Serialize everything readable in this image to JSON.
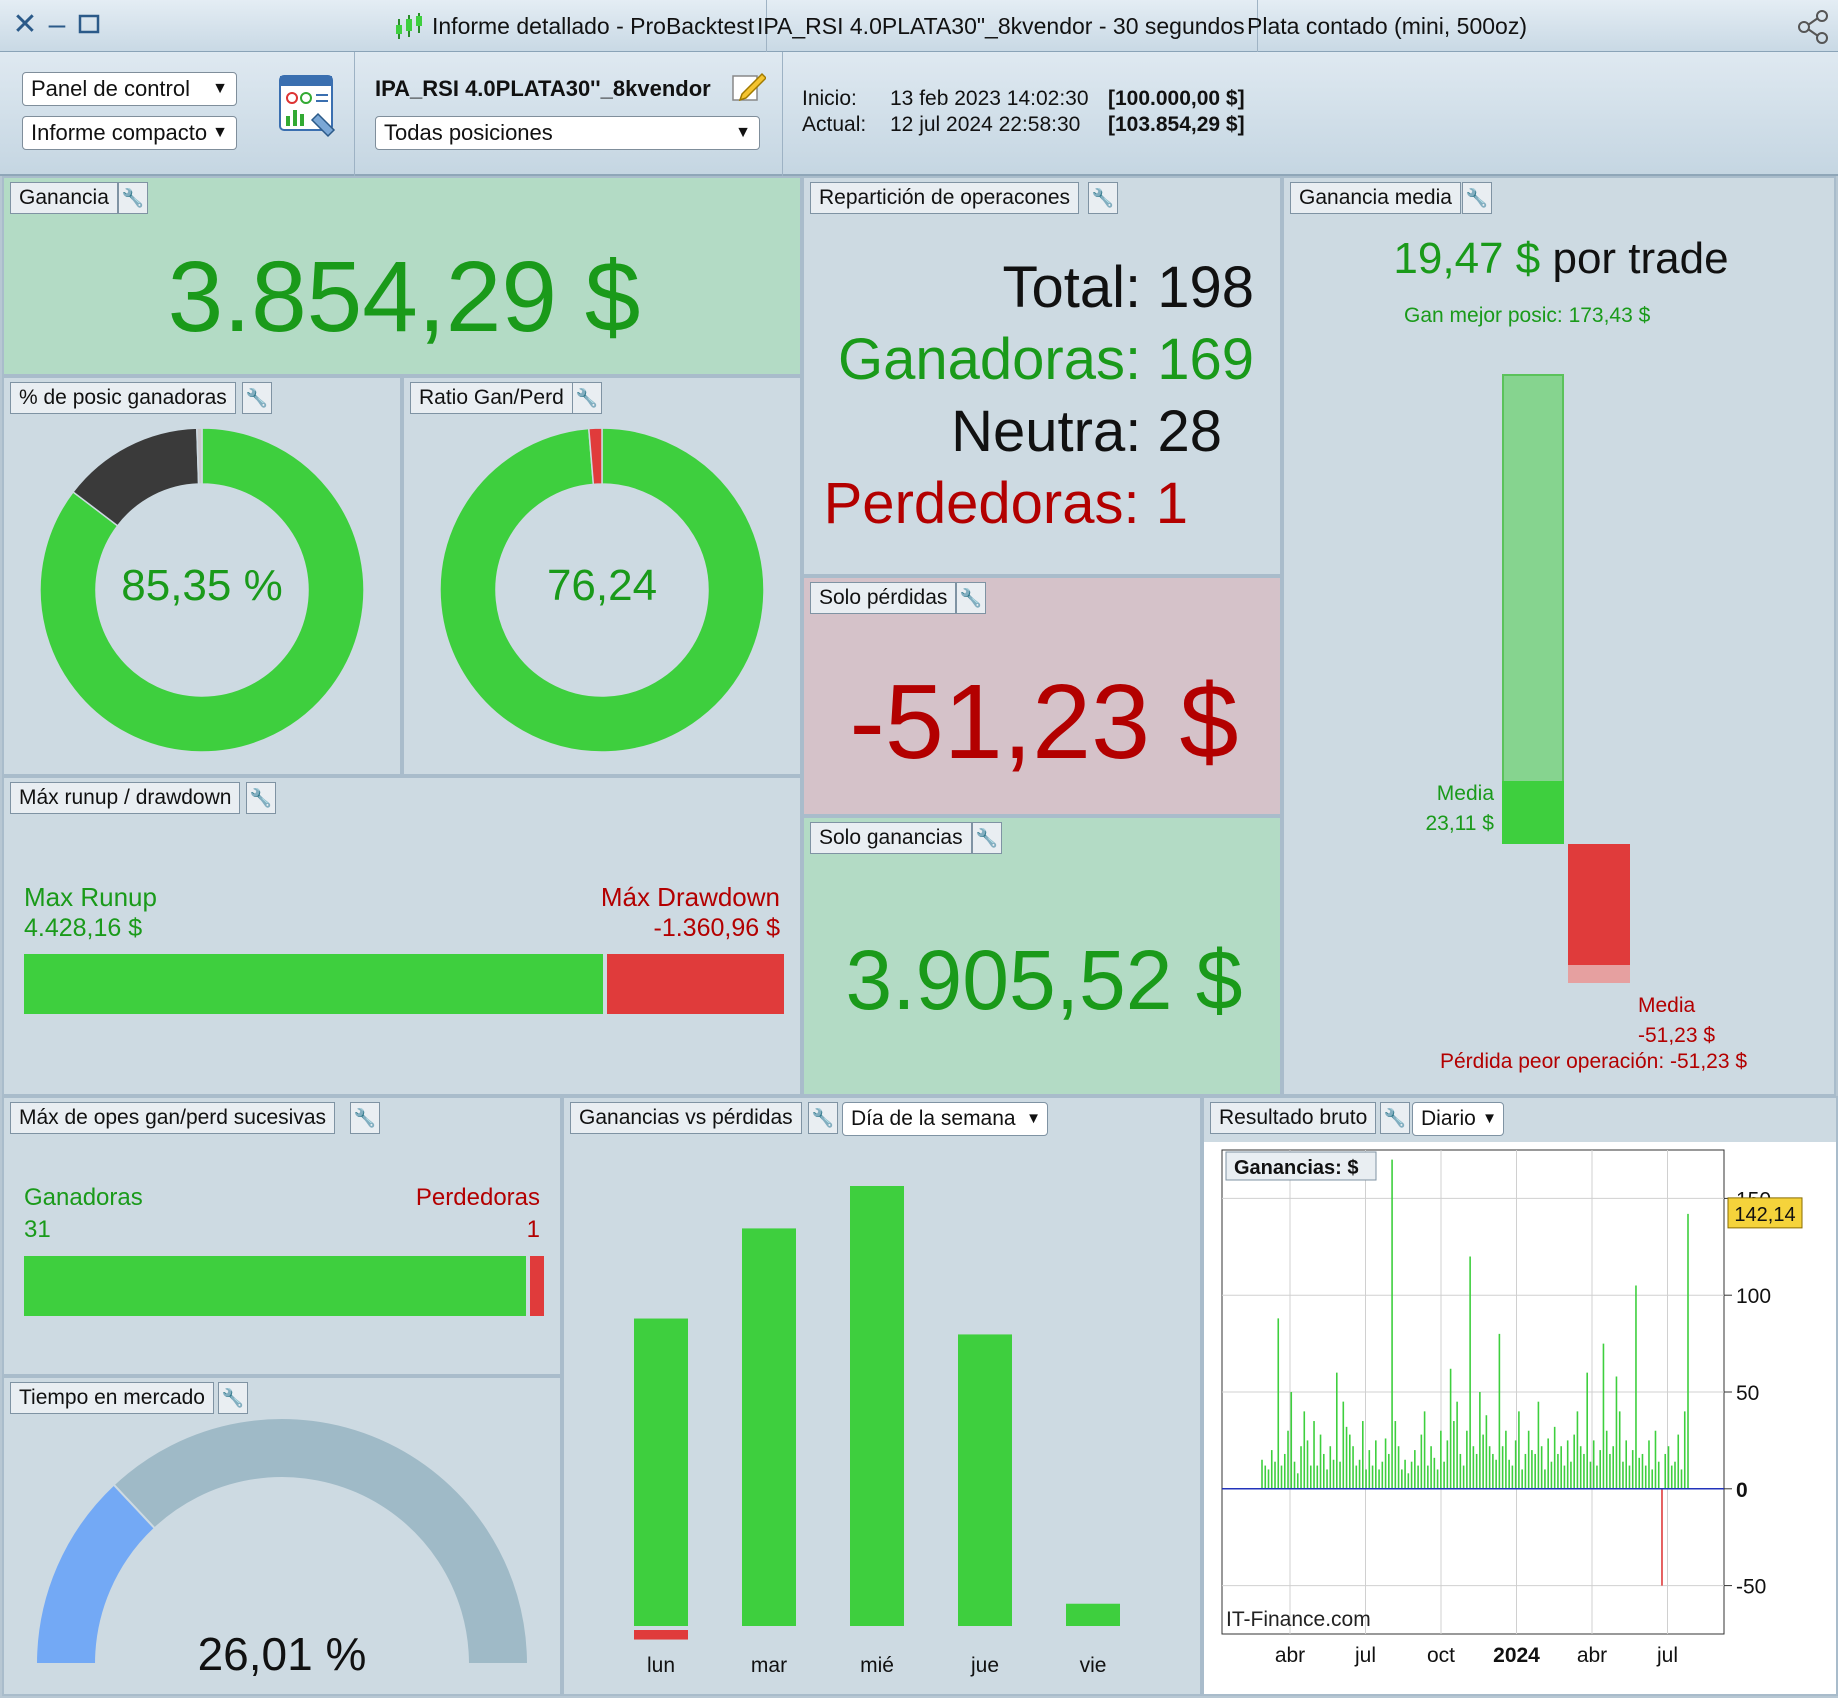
{
  "titlebar": {
    "segments": [
      "Informe detallado - ProBacktest",
      "IPA_RSI 4.0PLATA30\"_8kvendor - 30 segundos",
      "Plata contado (mini, 500oz)"
    ]
  },
  "toolbar": {
    "view_select": "Panel de control",
    "report_select": "Informe compacto",
    "strategy_name": "IPA_RSI 4.0PLATA30''_8kvendor",
    "positions_select": "Todas posiciones",
    "start_label": "Inicio:",
    "start_date": "13 feb 2023 14:02:30",
    "start_capital": "[100.000,00 $]",
    "current_label": "Actual:",
    "current_date": "12 jul 2024 22:58:30",
    "current_capital": "[103.854,29 $]"
  },
  "gain": {
    "title": "Ganancia",
    "value": "3.854,29 $"
  },
  "win_pct": {
    "title": "% de posic ganadoras",
    "value": "85,35 %",
    "fraction": 0.8535,
    "neutral_fraction": 0.1414,
    "loss_fraction": 0.0051
  },
  "ratio": {
    "title": "Ratio Gan/Perd",
    "value": "76,24",
    "win_share": 0.987
  },
  "distribution": {
    "title": "Repartición de operacones",
    "total_label": "Total:",
    "total": "198",
    "win_label": "Ganadoras:",
    "win": "169",
    "neutral_label": "Neutra:",
    "neutral": "28",
    "loss_label": "Perdedoras:",
    "loss": "1"
  },
  "avg_gain": {
    "title": "Ganancia media",
    "per_trade_value": "19,47 $",
    "per_trade_label": "por trade",
    "best": "Gan mejor posic: 173,43 $",
    "media_label": "Media",
    "win_avg": "23,11 $",
    "loss_media_label": "Media",
    "loss_avg": "-51,23 $",
    "worst": "Pérdida peor operación: -51,23 $",
    "best_value": 173.43,
    "win_avg_value": 23.11,
    "loss_avg_value": -51.23
  },
  "losses_only": {
    "title": "Solo pérdidas",
    "value": "-51,23 $"
  },
  "gains_only": {
    "title": "Solo ganancias",
    "value": "3.905,52 $"
  },
  "runup": {
    "title": "Máx runup / drawdown",
    "runup_label": "Max Runup",
    "runup_value": "4.428,16 $",
    "drawdown_label": "Máx Drawdown",
    "drawdown_value": "-1.360,96 $",
    "runup_amount": 4428.16,
    "drawdown_amount": 1360.96
  },
  "streak": {
    "title": "Máx de opes gan/perd sucesivas",
    "win_label": "Ganadoras",
    "win_value": "31",
    "loss_label": "Perdedoras",
    "loss_value": "1",
    "win_count": 31,
    "loss_count": 1
  },
  "time_in_market": {
    "title": "Tiempo en mercado",
    "value": "26,01 %",
    "fraction": 0.2601
  },
  "weekday": {
    "title": "Ganancias vs pérdidas",
    "select": "Día de la semana",
    "chart_data": {
      "type": "bar",
      "categories": [
        "lun",
        "mar",
        "mié",
        "jue",
        "vie"
      ],
      "series": [
        {
          "values": [
            580,
            750,
            830,
            550,
            42
          ]
        },
        {
          "values": [
            -30,
            0,
            0,
            0,
            0
          ]
        }
      ],
      "colors": [
        "#3ecf3e",
        "#e03b3b"
      ]
    }
  },
  "gross": {
    "title": "Resultado bruto",
    "select": "Diario",
    "legend": "Ganancias: $",
    "watermark": "IT-Finance.com",
    "last_value": "142,14",
    "chart_data": {
      "type": "bar",
      "x_labels": [
        "abr",
        "jul",
        "oct",
        "2024",
        "abr",
        "jul"
      ],
      "y_ticks": [
        150,
        100,
        50,
        0,
        -50
      ],
      "ylim": [
        -75,
        175
      ],
      "values": [
        15,
        12,
        10,
        20,
        14,
        88,
        12,
        18,
        30,
        50,
        14,
        8,
        22,
        40,
        25,
        12,
        35,
        12,
        28,
        18,
        10,
        22,
        15,
        60,
        14,
        45,
        32,
        28,
        22,
        12,
        15,
        35,
        10,
        20,
        12,
        25,
        10,
        14,
        26,
        18,
        170,
        35,
        22,
        10,
        15,
        8,
        14,
        20,
        12,
        28,
        40,
        12,
        22,
        16,
        10,
        30,
        14,
        25,
        62,
        35,
        45,
        18,
        12,
        30,
        120,
        22,
        18,
        50,
        28,
        38,
        22,
        18,
        15,
        80,
        22,
        30,
        15,
        12,
        25,
        40,
        10,
        18,
        30,
        20,
        18,
        45,
        22,
        10,
        26,
        14,
        32,
        18,
        22,
        12,
        25,
        14,
        28,
        40,
        22,
        18,
        60,
        14,
        25,
        12,
        20,
        75,
        30,
        18,
        22,
        58,
        40,
        14,
        25,
        12,
        20,
        105,
        16,
        18,
        12,
        25,
        10,
        30,
        14,
        -50,
        18,
        22,
        12,
        14,
        28,
        10,
        40,
        142
      ]
    }
  }
}
